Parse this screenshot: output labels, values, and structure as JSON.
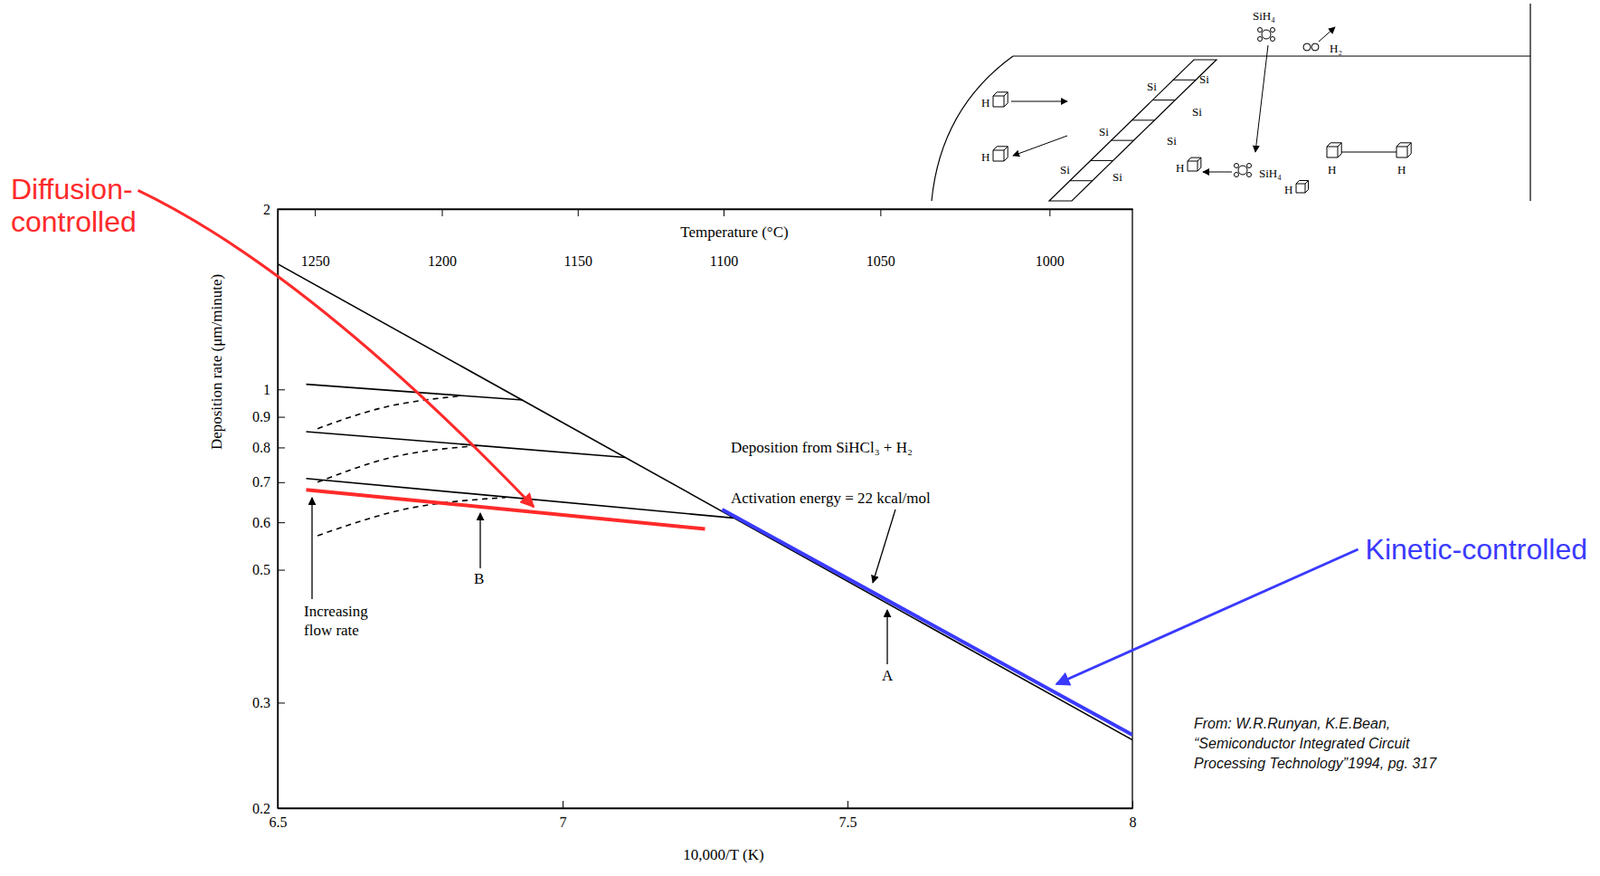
{
  "chart_data": {
    "type": "line",
    "log": "y",
    "x2label": "Temperature (°C)",
    "xlabel": "10,000/T (K)",
    "ylabel": "Deposition rate (μm/minute)",
    "xlim": [
      6.5,
      8
    ],
    "xticks": [
      6.5,
      7,
      7.5,
      8
    ],
    "x2lim": [
      1265.3,
      976.85
    ],
    "x2ticks": [
      1250,
      1200,
      1150,
      1100,
      1050,
      1000
    ],
    "ylim": [
      0.2,
      2
    ],
    "yticks": [
      0.2,
      0.3,
      0.5,
      0.6,
      0.7,
      0.8,
      0.9,
      1,
      2
    ],
    "series": [
      {
        "name": "A",
        "color": "#000000",
        "x": [
          6.5,
          8
        ],
        "values": [
          1.62,
          0.26
        ]
      },
      {
        "color": "#000000",
        "x": [
          6.55,
          6.93
        ],
        "values": [
          1.02,
          0.96
        ]
      },
      {
        "color": "#000000",
        "x": [
          6.55,
          7.11
        ],
        "values": [
          0.85,
          0.77
        ]
      },
      {
        "name": "B",
        "color": "#000000",
        "x": [
          6.55,
          7.3
        ],
        "values": [
          0.71,
          0.61
        ]
      },
      {
        "color": "#000000",
        "line_style": "dashed",
        "x": [
          6.57,
          6.68,
          6.82
        ],
        "values": [
          0.86,
          0.93,
          0.975
        ]
      },
      {
        "color": "#000000",
        "line_style": "dashed",
        "x": [
          6.57,
          6.7,
          6.85
        ],
        "values": [
          0.7,
          0.77,
          0.805
        ]
      },
      {
        "color": "#000000",
        "line_style": "dashed",
        "x": [
          6.57,
          6.72,
          6.9
        ],
        "values": [
          0.57,
          0.63,
          0.66
        ]
      },
      {
        "name": "Diffusion-controlled",
        "color": "#ff2a2a",
        "x": [
          6.55,
          7.25
        ],
        "values": [
          0.68,
          0.585
        ]
      },
      {
        "name": "Kinetic-controlled",
        "color": "#3a3aff",
        "x": [
          7.28,
          8
        ],
        "values": [
          0.63,
          0.265
        ]
      }
    ],
    "annotations": [
      "Deposition from SiHCl₃ + H₂",
      "Activation energy = 22 kcal/mol",
      "Increasing flow rate"
    ],
    "source": [
      "From: W.R.Runyan, K.E.Bean,",
      "“Semiconductor Integrated Circuit",
      "Processing Technology”1994, pg. 317"
    ]
  },
  "inset": {
    "labels": [
      "SiH₄",
      "H₂",
      "H",
      "H",
      "Si",
      "Si",
      "Si",
      "Si",
      "Si",
      "Si",
      "Si",
      "H",
      "SiH₄",
      "H",
      "H",
      "H"
    ]
  }
}
